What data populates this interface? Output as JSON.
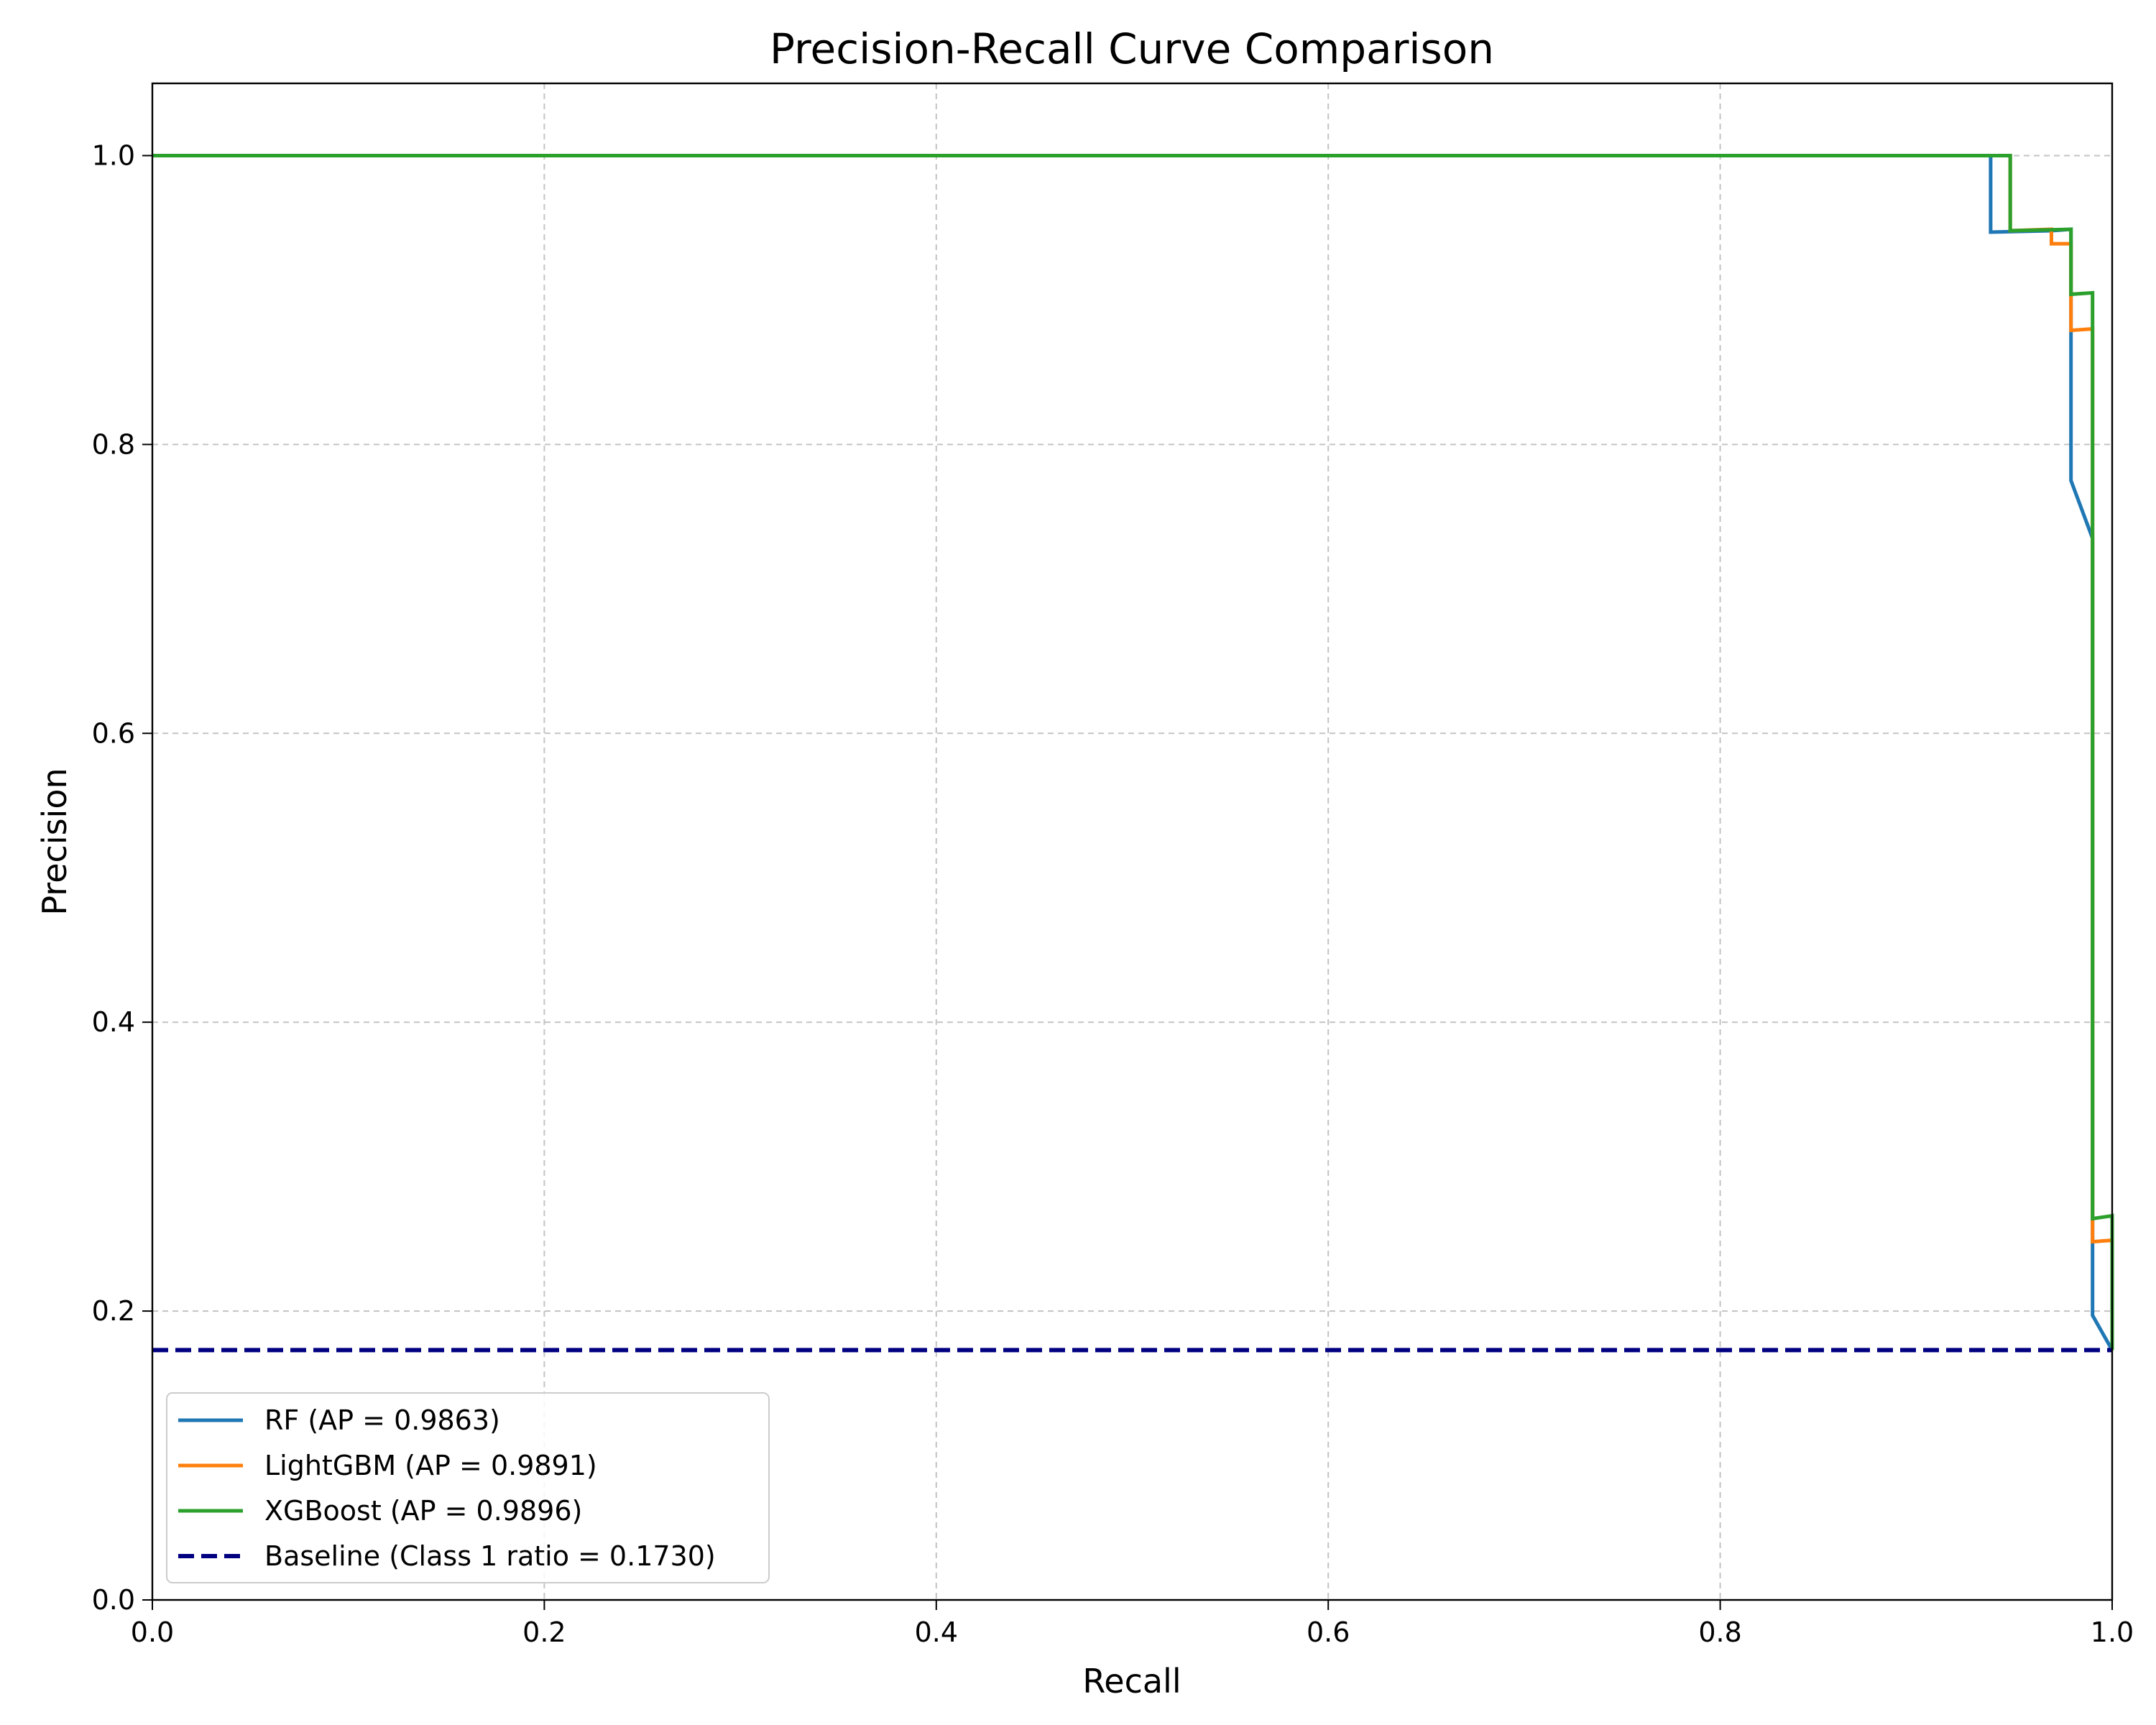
{
  "chart_data": {
    "type": "line",
    "title": "Precision-Recall Curve Comparison",
    "xlabel": "Recall",
    "ylabel": "Precision",
    "xlim": [
      0.0,
      1.0
    ],
    "ylim": [
      0.0,
      1.05
    ],
    "xticks": [
      "0.0",
      "0.2",
      "0.4",
      "0.6",
      "0.8",
      "1.0"
    ],
    "yticks": [
      "0.0",
      "0.2",
      "0.4",
      "0.6",
      "0.8",
      "1.0"
    ],
    "grid": true,
    "legend_position": "lower-left",
    "series": [
      {
        "name": "RF (AP = 0.9863)",
        "color": "#1f77b4",
        "style": "solid",
        "points": [
          [
            0.0,
            1.0
          ],
          [
            0.938,
            1.0
          ],
          [
            0.938,
            0.947
          ],
          [
            0.969,
            0.948
          ],
          [
            0.979,
            0.949
          ],
          [
            0.979,
            0.775
          ],
          [
            0.99,
            0.735
          ],
          [
            0.99,
            0.197
          ],
          [
            1.0,
            0.173
          ]
        ]
      },
      {
        "name": "LightGBM (AP = 0.9891)",
        "color": "#ff7f0e",
        "style": "solid",
        "points": [
          [
            0.0,
            1.0
          ],
          [
            0.948,
            1.0
          ],
          [
            0.948,
            0.948
          ],
          [
            0.969,
            0.949
          ],
          [
            0.969,
            0.939
          ],
          [
            0.979,
            0.939
          ],
          [
            0.979,
            0.879
          ],
          [
            0.99,
            0.88
          ],
          [
            0.99,
            0.248
          ],
          [
            1.0,
            0.249
          ],
          [
            1.0,
            0.173
          ]
        ]
      },
      {
        "name": "XGBoost (AP = 0.9896)",
        "color": "#2ca02c",
        "style": "solid",
        "points": [
          [
            0.0,
            1.0
          ],
          [
            0.948,
            1.0
          ],
          [
            0.948,
            0.948
          ],
          [
            0.979,
            0.949
          ],
          [
            0.979,
            0.904
          ],
          [
            0.99,
            0.905
          ],
          [
            0.99,
            0.264
          ],
          [
            1.0,
            0.266
          ],
          [
            1.0,
            0.173
          ]
        ]
      },
      {
        "name": "Baseline (Class 1 ratio = 0.1730)",
        "color": "#000080",
        "style": "dashed",
        "points": [
          [
            0.0,
            0.173
          ],
          [
            1.0,
            0.173
          ]
        ]
      }
    ]
  }
}
